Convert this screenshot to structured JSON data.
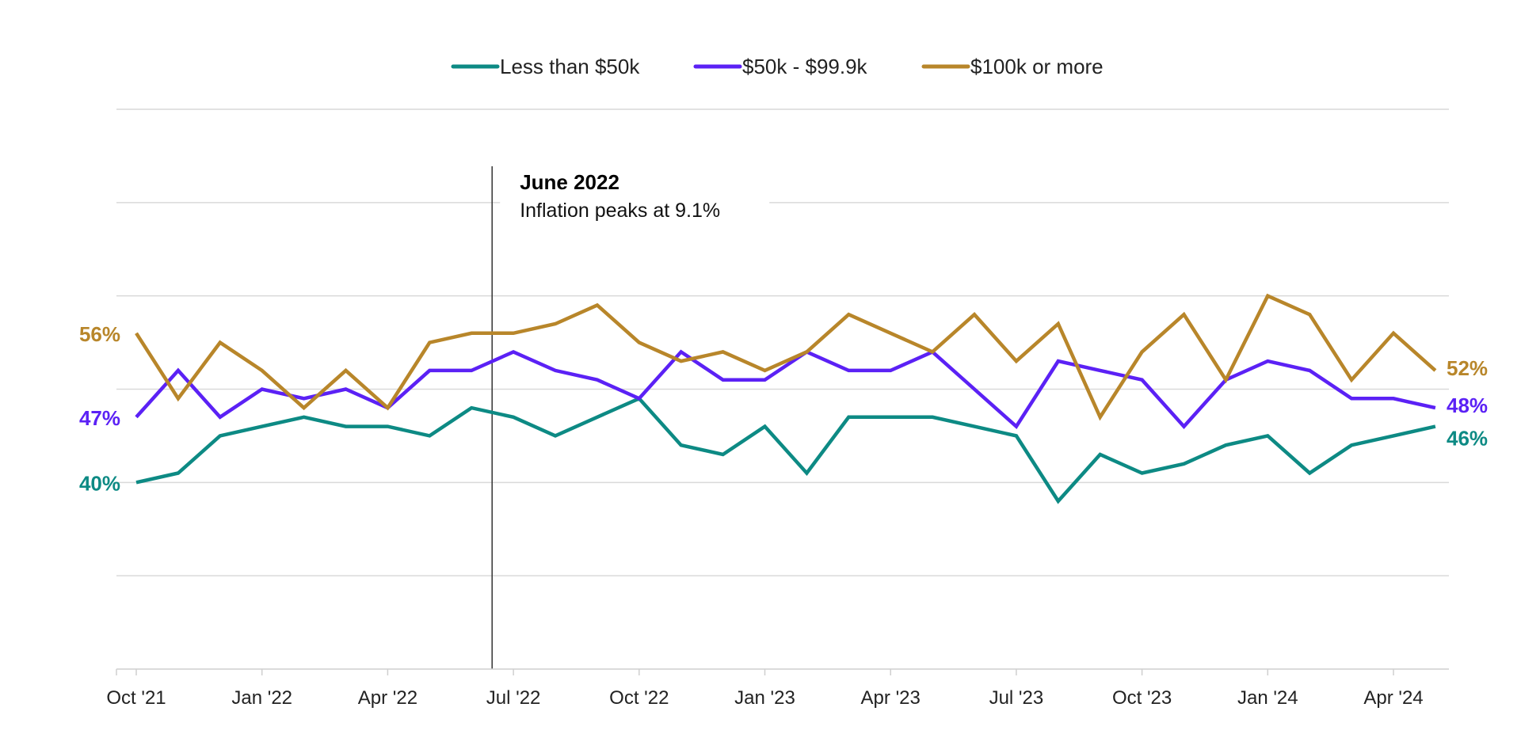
{
  "chart_data": {
    "type": "line",
    "x": [
      "Oct '21",
      "Nov '21",
      "Dec '21",
      "Jan '22",
      "Feb '22",
      "Mar '22",
      "Apr '22",
      "May '22",
      "Jun '22",
      "Jul '22",
      "Aug '22",
      "Sep '22",
      "Oct '22",
      "Nov '22",
      "Dec '22",
      "Jan '23",
      "Feb '23",
      "Mar '23",
      "Apr '23",
      "May '23",
      "Jun '23",
      "Jul '23",
      "Aug '23",
      "Sep '23",
      "Oct '23",
      "Nov '23",
      "Dec '23",
      "Jan '24",
      "Feb '24",
      "Mar '24",
      "Apr '24",
      "May '24"
    ],
    "tick_labels": [
      "Oct '21",
      "Jan '22",
      "Apr '22",
      "Jul '22",
      "Oct '22",
      "Jan '23",
      "Apr '23",
      "Jul '23",
      "Oct '23",
      "Jan '24",
      "Apr '24"
    ],
    "ylim": [
      20,
      80
    ],
    "grid": true,
    "legend_position": "top",
    "series": [
      {
        "name": "Less than $50k",
        "color": "#0d8a84",
        "end_label": "46%",
        "start_label": "40%",
        "values": [
          40,
          41,
          45,
          46,
          47,
          46,
          46,
          45,
          48,
          47,
          45,
          47,
          49,
          44,
          43,
          46,
          41,
          47,
          47,
          47,
          46,
          45,
          38,
          43,
          41,
          42,
          44,
          45,
          41,
          44,
          45,
          46
        ]
      },
      {
        "name": "$50k - $99.9k",
        "color": "#5b21f5",
        "end_label": "48%",
        "start_label": "47%",
        "values": [
          47,
          52,
          47,
          50,
          49,
          50,
          48,
          52,
          52,
          54,
          52,
          51,
          49,
          54,
          51,
          51,
          54,
          52,
          52,
          54,
          50,
          46,
          53,
          52,
          51,
          46,
          51,
          53,
          52,
          49,
          49,
          48
        ]
      },
      {
        "name": "$100k or more",
        "color": "#b8862a",
        "end_label": "52%",
        "start_label": "56%",
        "values": [
          56,
          49,
          55,
          52,
          48,
          52,
          48,
          55,
          56,
          56,
          57,
          59,
          55,
          53,
          54,
          52,
          54,
          58,
          56,
          54,
          58,
          53,
          57,
          47,
          54,
          58,
          51,
          60,
          58,
          51,
          56,
          52
        ]
      }
    ],
    "annotation": {
      "at_x": "Jun '22",
      "title": "June 2022",
      "text": "Inflation peaks at 9.1%"
    }
  }
}
